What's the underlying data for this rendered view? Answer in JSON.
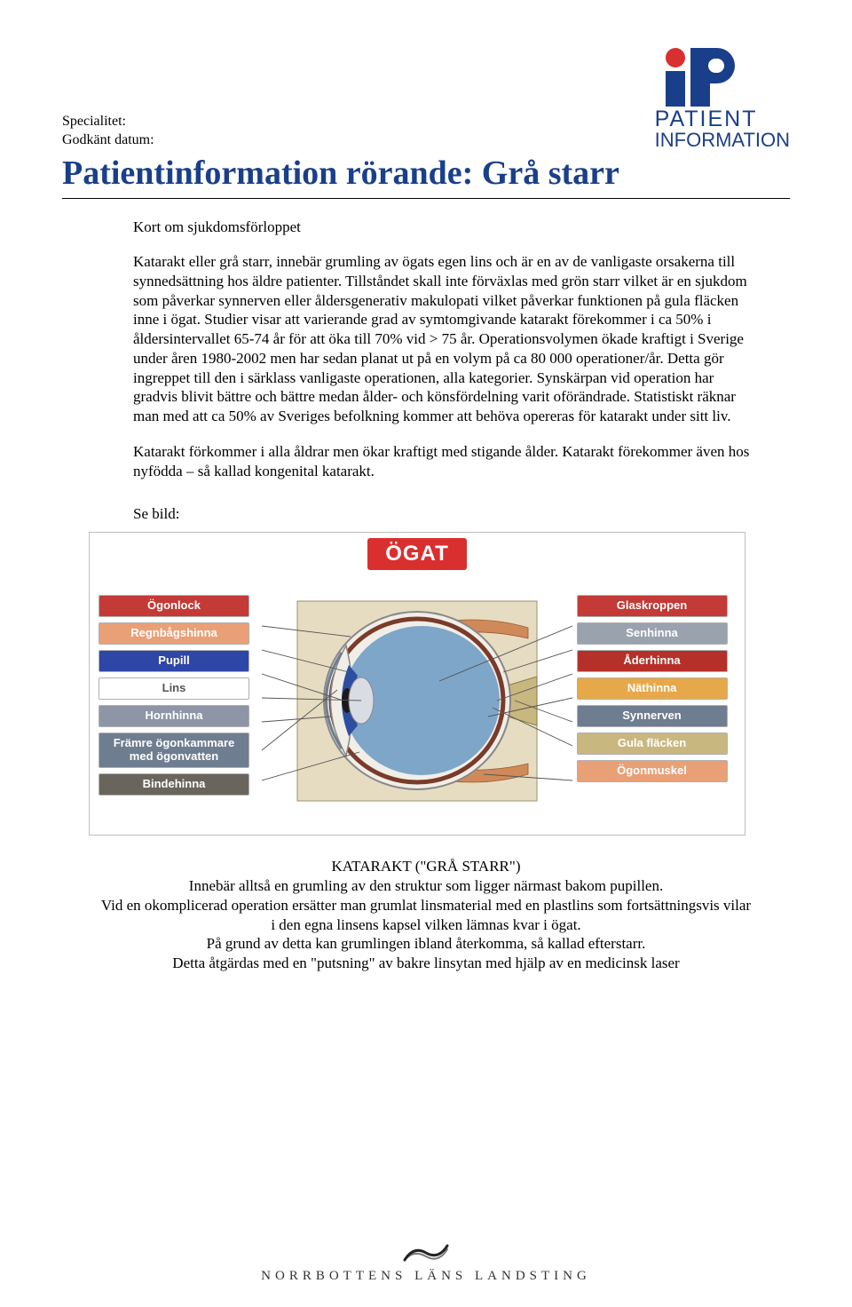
{
  "meta": {
    "specialitet_label": "Specialitet:",
    "godkant_label": "Godkänt datum:"
  },
  "logo": {
    "line1": "PATIENT",
    "line2": "INFORMATION"
  },
  "title": "Patientinformation rörande: Grå starr",
  "subheading": "Kort om sjukdomsförloppet",
  "paragraph1": "Katarakt eller grå starr, innebär grumling av ögats egen lins och är en av de vanligaste orsakerna till synnedsättning hos äldre patienter. Tillståndet skall inte förväxlas med grön starr vilket är en sjukdom som påverkar synnerven eller åldersgenerativ makulopati vilket påverkar funktionen på gula fläcken inne i ögat. Studier visar att varierande grad av symtomgivande katarakt förekommer i ca 50% i åldersintervallet 65-74 år för att öka till 70% vid > 75 år. Operationsvolymen ökade kraftigt i Sverige under åren 1980-2002 men har sedan planat ut på en volym på ca 80 000 operationer/år. Detta gör ingreppet till den i särklass vanligaste operationen, alla kategorier. Synskärpan vid operation har gradvis blivit bättre och bättre medan ålder- och könsfördelning varit oförändrade. Statistiskt räknar man med att ca 50% av Sveriges befolkning kommer att behöva opereras för katarakt under sitt liv.",
  "paragraph2": "Katarakt förkommer i alla åldrar men ökar kraftigt med stigande ålder. Katarakt förekommer även hos nyfödda – så kallad kongenital katarakt.",
  "see_image": "Se bild:",
  "diagram": {
    "title": "ÖGAT",
    "left_labels": [
      {
        "text": "Ögonlock",
        "bg": "#c43a36",
        "fg": "#ffffff"
      },
      {
        "text": "Regnbågshinna",
        "bg": "#e9a077",
        "fg": "#ffffff"
      },
      {
        "text": "Pupill",
        "bg": "#2e46a6",
        "fg": "#ffffff"
      },
      {
        "text": "Lins",
        "bg": "#ffffff",
        "fg": "#555555"
      },
      {
        "text": "Hornhinna",
        "bg": "#8d95a6",
        "fg": "#ffffff"
      },
      {
        "text": "Främre ögonkammare med ögonvatten",
        "bg": "#6f7d90",
        "fg": "#ffffff"
      },
      {
        "text": "Bindehinna",
        "bg": "#6a655c",
        "fg": "#ffffff"
      }
    ],
    "right_labels": [
      {
        "text": "Glaskroppen",
        "bg": "#c43a36",
        "fg": "#ffffff"
      },
      {
        "text": "Senhinna",
        "bg": "#9aa2ae",
        "fg": "#ffffff"
      },
      {
        "text": "Åderhinna",
        "bg": "#b53028",
        "fg": "#ffffff"
      },
      {
        "text": "Näthinna",
        "bg": "#e7a84a",
        "fg": "#ffffff"
      },
      {
        "text": "Synnerven",
        "bg": "#6f7d90",
        "fg": "#ffffff"
      },
      {
        "text": "Gula fläcken",
        "bg": "#c9b780",
        "fg": "#ffffff"
      },
      {
        "text": "Ögonmuskel",
        "bg": "#e9a077",
        "fg": "#ffffff"
      }
    ],
    "eye_colors": {
      "frame_bg": "#e6dcc2",
      "sclera": "#f1eee7",
      "choroid": "#7a3b2a",
      "vitreous": "#7ea6c9",
      "iris": "#2d4ea0",
      "pupil": "#1a1a1a",
      "cornea_stroke": "#6f7d90",
      "lens_fill": "#d9dde3",
      "nerve": "#c9b780",
      "muscle": "#d08a5a",
      "line": "#555555"
    }
  },
  "caption": {
    "line1": "KATARAKT (\"GRÅ STARR\")",
    "line2": "Innebär alltså en grumling av den struktur som ligger närmast bakom pupillen.",
    "line3": "Vid en okomplicerad operation ersätter man grumlat linsmaterial med en plastlins som fortsättningsvis vilar i den egna linsens kapsel vilken lämnas kvar i ögat.",
    "line4": "På grund av detta kan grumlingen ibland återkomma, så kallad efterstarr.",
    "line5": "Detta åtgärdas med en \"putsning\" av bakre linsytan med hjälp av en medicinsk laser"
  },
  "footer": "NORRBOTTENS LÄNS LANDSTING"
}
